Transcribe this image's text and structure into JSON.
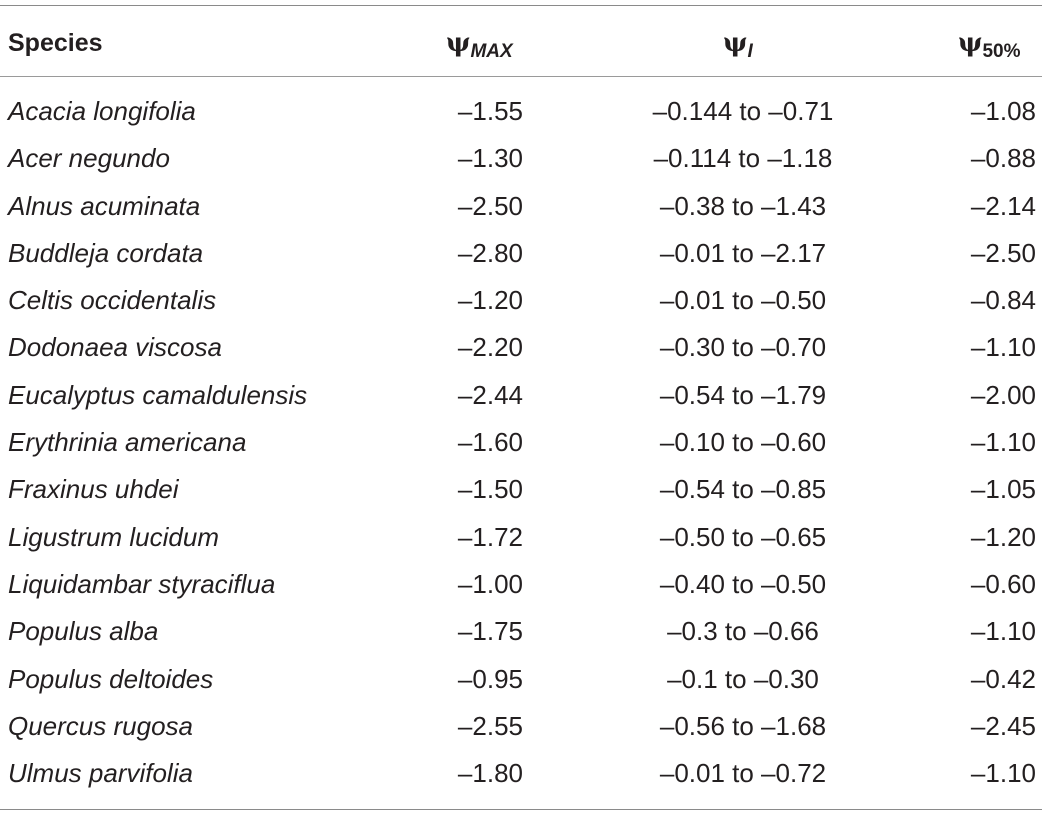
{
  "table": {
    "headers": {
      "species": "Species",
      "psi_symbol": "ψ",
      "max_sub": "MAX",
      "i_sub": "I",
      "fifty_sub": "50%"
    },
    "rows": [
      {
        "species": "Acacia longifolia",
        "psi_max": "–1.55",
        "psi_i": "–0.144 to –0.71",
        "psi_50": "–1.08"
      },
      {
        "species": "Acer negundo",
        "psi_max": "–1.30",
        "psi_i": "–0.114 to –1.18",
        "psi_50": "–0.88"
      },
      {
        "species": "Alnus acuminata",
        "psi_max": "–2.50",
        "psi_i": "–0.38 to –1.43",
        "psi_50": "–2.14"
      },
      {
        "species": "Buddleja cordata",
        "psi_max": "–2.80",
        "psi_i": "–0.01 to –2.17",
        "psi_50": "–2.50"
      },
      {
        "species": "Celtis occidentalis",
        "psi_max": "–1.20",
        "psi_i": "–0.01 to –0.50",
        "psi_50": "–0.84"
      },
      {
        "species": "Dodonaea viscosa",
        "psi_max": "–2.20",
        "psi_i": "–0.30 to –0.70",
        "psi_50": "–1.10"
      },
      {
        "species": "Eucalyptus camaldulensis",
        "psi_max": "–2.44",
        "psi_i": "–0.54 to –1.79",
        "psi_50": "–2.00"
      },
      {
        "species": "Erythrinia americana",
        "psi_max": "–1.60",
        "psi_i": "–0.10 to –0.60",
        "psi_50": "–1.10"
      },
      {
        "species": "Fraxinus uhdei",
        "psi_max": "–1.50",
        "psi_i": "–0.54 to –0.85",
        "psi_50": "–1.05"
      },
      {
        "species": "Ligustrum lucidum",
        "psi_max": "–1.72",
        "psi_i": "–0.50 to –0.65",
        "psi_50": "–1.20"
      },
      {
        "species": "Liquidambar styraciflua",
        "psi_max": "–1.00",
        "psi_i": "–0.40 to –0.50",
        "psi_50": "–0.60"
      },
      {
        "species": "Populus alba",
        "psi_max": "–1.75",
        "psi_i": "–0.3 to –0.66",
        "psi_50": "–1.10"
      },
      {
        "species": "Populus deltoides",
        "psi_max": "–0.95",
        "psi_i": "–0.1 to –0.30",
        "psi_50": "–0.42"
      },
      {
        "species": "Quercus rugosa",
        "psi_max": "–2.55",
        "psi_i": "–0.56 to –1.68",
        "psi_50": "–2.45"
      },
      {
        "species": "Ulmus parvifolia",
        "psi_max": "–1.80",
        "psi_i": "–0.01 to –0.72",
        "psi_50": "–1.10"
      }
    ]
  }
}
